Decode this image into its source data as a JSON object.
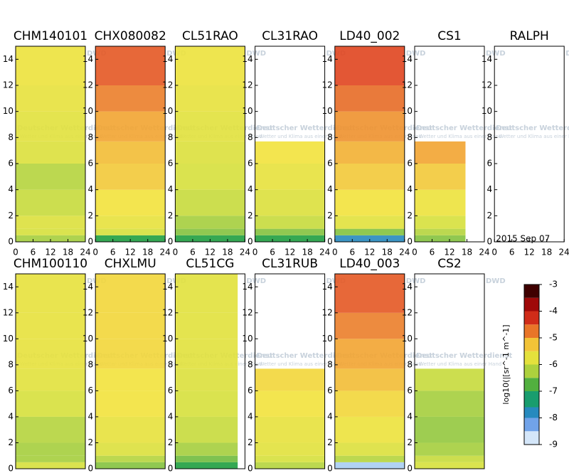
{
  "watermark": {
    "title": "Deutscher Wetterdienst",
    "subtitle": "Wetter und Klima aus einer Hand",
    "logo": "DWD"
  },
  "chart_data": [
    {
      "type": "heatmap",
      "title": "CHM140101",
      "heights": [
        0,
        0.5,
        1,
        2,
        4,
        6,
        7.7,
        10,
        12,
        15
      ],
      "values": [
        -6.3,
        -6.0,
        -5.9,
        -6.1,
        -6.2,
        -5.9,
        -5.8,
        -5.7,
        -5.6
      ],
      "xlim": [
        0,
        24
      ],
      "xticks": [
        0,
        6,
        12,
        18,
        24
      ],
      "ylim": [
        0,
        15
      ],
      "yticks": [
        0,
        2,
        4,
        6,
        8,
        10,
        12,
        14
      ]
    },
    {
      "type": "heatmap",
      "title": "CHX080082",
      "heights": [
        0,
        0.5,
        1,
        2,
        4,
        6,
        7.7,
        10,
        12,
        15
      ],
      "values": [
        -7.0,
        -6.0,
        -5.7,
        -5.5,
        -5.3,
        -5.2,
        -5.0,
        -4.8,
        -4.6
      ],
      "xlim": [
        0,
        24
      ],
      "xticks": [
        0,
        6,
        12,
        18,
        24
      ],
      "ylim": [
        0,
        15
      ],
      "yticks": [
        0,
        2,
        4,
        6,
        8,
        10,
        12,
        14
      ]
    },
    {
      "type": "heatmap",
      "title": "CL51RAO",
      "heights": [
        0,
        0.5,
        1,
        2,
        4,
        6,
        7.7,
        10,
        12,
        15
      ],
      "values": [
        -7.0,
        -6.5,
        -6.3,
        -6.1,
        -6.0,
        -5.9,
        -5.8,
        -5.7,
        -5.6
      ],
      "xlim": [
        0,
        24
      ],
      "xticks": [
        0,
        6,
        12,
        18,
        24
      ],
      "ylim": [
        0,
        15
      ],
      "yticks": [
        0,
        2,
        4,
        6,
        8,
        10,
        12,
        14
      ]
    },
    {
      "type": "heatmap",
      "title": "CL31RAO",
      "heights": [
        0,
        0.5,
        1,
        2,
        4,
        6,
        7.7,
        10,
        12,
        15
      ],
      "values": [
        -7.0,
        -6.5,
        -6.1,
        -5.9,
        -5.7,
        -5.5,
        null,
        null,
        null
      ],
      "xlim": [
        0,
        24
      ],
      "xticks": [
        0,
        6,
        12,
        18,
        24
      ],
      "ylim": [
        0,
        15
      ],
      "yticks": [
        0,
        2,
        4,
        6,
        8,
        10,
        12,
        14
      ]
    },
    {
      "type": "heatmap",
      "title": "LD40_002",
      "heights": [
        0,
        0.5,
        1,
        2,
        4,
        6,
        7.7,
        10,
        12,
        15
      ],
      "values": [
        -7.8,
        -6.5,
        -5.8,
        -5.5,
        -5.3,
        -5.1,
        -4.9,
        -4.7,
        -4.5
      ],
      "xlim": [
        0,
        24
      ],
      "xticks": [
        0,
        6,
        12,
        18,
        24
      ],
      "ylim": [
        0,
        15
      ],
      "yticks": [
        0,
        2,
        4,
        6,
        8,
        10,
        12,
        14
      ]
    },
    {
      "type": "heatmap",
      "title": "CS1",
      "heights": [
        0,
        0.5,
        1,
        2,
        4,
        6,
        7.7,
        10,
        12,
        15
      ],
      "values": [
        -6.5,
        -6.2,
        -6.0,
        -5.6,
        -5.3,
        -5.0,
        null,
        null,
        null
      ],
      "time_end": 17.5,
      "xlim": [
        0,
        24
      ],
      "xticks": [
        0,
        6,
        12,
        18,
        24
      ],
      "ylim": [
        0,
        15
      ],
      "yticks": [
        0,
        2,
        4,
        6,
        8,
        10,
        12,
        14
      ]
    },
    {
      "type": "heatmap",
      "title": "RALPH",
      "annotation": "2015 Sep 07",
      "heights": [
        0,
        0.5,
        1,
        2,
        4,
        6,
        7.7,
        10,
        12,
        15
      ],
      "values": [
        null,
        null,
        null,
        null,
        null,
        null,
        null,
        null,
        null
      ],
      "xlim": [
        0,
        24
      ],
      "xticks": [
        0,
        6,
        12,
        18,
        24
      ],
      "ylim": [
        0,
        15
      ],
      "yticks": [
        0,
        2,
        4,
        6,
        8,
        10,
        12,
        14
      ]
    },
    {
      "type": "heatmap",
      "title": "CHM100110",
      "heights": [
        0,
        0.5,
        1,
        2,
        4,
        6,
        7.7,
        10,
        12,
        15
      ],
      "values": [
        -6.0,
        -6.3,
        -6.3,
        -6.2,
        -6.0,
        -5.8,
        -5.7,
        -5.7,
        -5.7
      ],
      "xlim": [
        0,
        24
      ],
      "ylim": [
        0,
        15
      ],
      "yticks": [
        0,
        2,
        4,
        6,
        8,
        10,
        12,
        14
      ]
    },
    {
      "type": "heatmap",
      "title": "CHXLMU",
      "heights": [
        0,
        0.5,
        1,
        2,
        4,
        6,
        7.7,
        10,
        12,
        15
      ],
      "values": [
        -6.5,
        -6.2,
        -5.9,
        -5.7,
        -5.5,
        -5.5,
        -5.4,
        -5.4,
        -5.4
      ],
      "xlim": [
        0,
        24
      ],
      "ylim": [
        0,
        15
      ],
      "yticks": [
        0,
        2,
        4,
        6,
        8,
        10,
        12,
        14
      ]
    },
    {
      "type": "heatmap",
      "title": "CL51CG",
      "heights": [
        0,
        0.5,
        1,
        2,
        4,
        6,
        7.7,
        10,
        12,
        15
      ],
      "values": [
        -7.0,
        -6.6,
        -6.3,
        -6.1,
        -6.0,
        -5.9,
        -5.8,
        -5.8,
        -5.8
      ],
      "time_end": 21.5,
      "xlim": [
        0,
        24
      ],
      "ylim": [
        0,
        15
      ],
      "yticks": [
        0,
        2,
        4,
        6,
        8,
        10,
        12,
        14
      ]
    },
    {
      "type": "heatmap",
      "title": "CL31RUB",
      "heights": [
        0,
        0.5,
        1,
        2,
        4,
        6,
        7.7,
        10,
        12,
        15
      ],
      "values": [
        -6.2,
        -6.0,
        -5.8,
        -5.7,
        -5.5,
        -5.4,
        null,
        null,
        null
      ],
      "xlim": [
        0,
        24
      ],
      "ylim": [
        0,
        15
      ],
      "yticks": [
        0,
        2,
        4,
        6,
        8,
        10,
        12,
        14
      ]
    },
    {
      "type": "heatmap",
      "title": "LD40_003",
      "heights": [
        0,
        0.5,
        1,
        2,
        4,
        6,
        7.7,
        10,
        12,
        15
      ],
      "values": [
        -8.5,
        -6.2,
        -5.9,
        -5.6,
        -5.4,
        -5.2,
        -5.0,
        -4.8,
        -4.6
      ],
      "xlim": [
        0,
        24
      ],
      "ylim": [
        0,
        15
      ],
      "yticks": [
        0,
        2,
        4,
        6,
        8,
        10,
        12,
        14
      ]
    },
    {
      "type": "heatmap",
      "title": "CS2",
      "heights": [
        0,
        0.5,
        1,
        2,
        4,
        6,
        7.7,
        10,
        12,
        15
      ],
      "values": [
        -6.0,
        -6.1,
        -6.3,
        -6.4,
        -6.3,
        -6.1,
        null,
        null,
        null
      ],
      "xlim": [
        0,
        24
      ],
      "ylim": [
        0,
        15
      ],
      "yticks": [
        0,
        2,
        4,
        6,
        8,
        10,
        12,
        14
      ]
    },
    {
      "type": "colorbar",
      "label": "log10(|[sr^-1 m^-1]",
      "ylim": [
        -9,
        -3
      ],
      "yticks": [
        -9,
        -8,
        -7,
        -6,
        -5,
        -4,
        -3
      ],
      "colorscale": [
        [
          -9,
          "#ffffff"
        ],
        [
          -8.5,
          "#a8cdf2"
        ],
        [
          -8,
          "#3a78e0"
        ],
        [
          -7.6,
          "#139c9c"
        ],
        [
          -7,
          "#1f9e40"
        ],
        [
          -6.5,
          "#84c23e"
        ],
        [
          -6,
          "#d6e03c"
        ],
        [
          -5.5,
          "#f2e23c"
        ],
        [
          -5,
          "#f2a431"
        ],
        [
          -4.5,
          "#e0451f"
        ],
        [
          -4,
          "#c01212"
        ],
        [
          -3.5,
          "#7e0000"
        ],
        [
          -3,
          "#000000"
        ]
      ]
    }
  ]
}
